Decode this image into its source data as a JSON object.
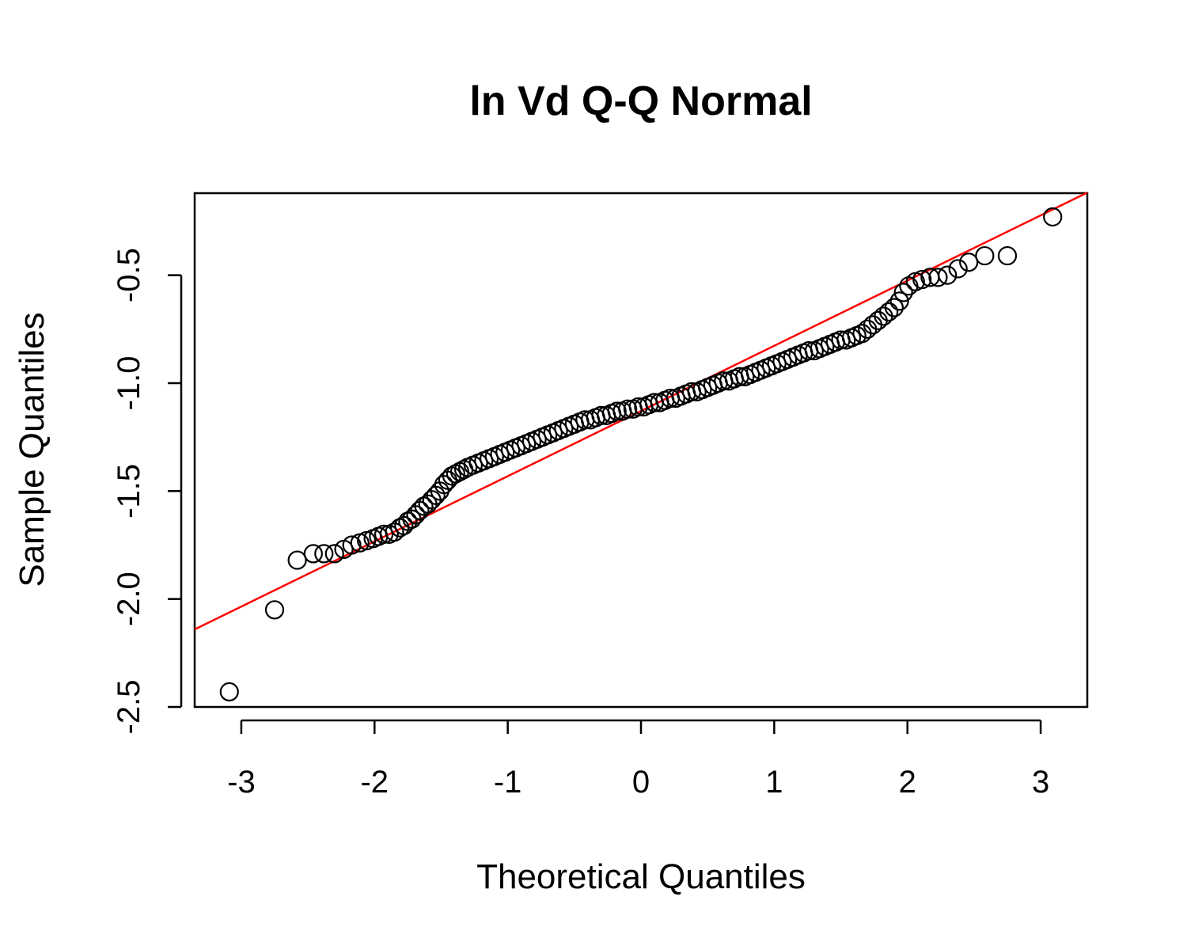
{
  "chart_data": {
    "type": "scatter",
    "title": "ln Vd Q-Q Normal",
    "xlabel": "Theoretical Quantiles",
    "ylabel": "Sample Quantiles",
    "xlim": [
      -3.35,
      3.35
    ],
    "ylim": [
      -2.5,
      -0.12
    ],
    "xticks": [
      -3,
      -2,
      -1,
      0,
      1,
      2,
      3
    ],
    "xtick_labels": [
      "-3",
      "-2",
      "-1",
      "0",
      "1",
      "2",
      "3"
    ],
    "yticks": [
      -2.5,
      -2.0,
      -1.5,
      -1.0,
      -0.5
    ],
    "ytick_labels": [
      "-2.5",
      "-2.0",
      "-1.5",
      "-1.0",
      "-0.5"
    ],
    "grid": false,
    "marker": "open-circle",
    "reference_line": {
      "slope": 0.302,
      "intercept": -1.129,
      "color": "#ff0000"
    },
    "series": [
      {
        "x": [
          -3.09,
          -2.75,
          -2.58,
          -2.46,
          -2.38,
          -2.3,
          -2.23,
          -2.17,
          -2.11,
          -2.06,
          -2.01,
          -1.97,
          -1.93,
          -1.89,
          -1.85,
          -1.81,
          -1.78,
          -1.75,
          -1.72,
          -1.69,
          -1.66,
          -1.63,
          -1.6,
          -1.57,
          -1.54,
          -1.51,
          -1.48,
          -1.45,
          -1.42,
          -1.39,
          -1.36,
          -1.33,
          -1.3,
          -1.26,
          -1.22,
          -1.18,
          -1.14,
          -1.1,
          -1.06,
          -1.02,
          -0.98,
          -0.94,
          -0.9,
          -0.86,
          -0.82,
          -0.78,
          -0.74,
          -0.7,
          -0.66,
          -0.62,
          -0.58,
          -0.54,
          -0.5,
          -0.46,
          -0.42,
          -0.38,
          -0.34,
          -0.3,
          -0.26,
          -0.22,
          -0.18,
          -0.14,
          -0.1,
          -0.06,
          -0.02,
          0.02,
          0.06,
          0.1,
          0.14,
          0.18,
          0.22,
          0.26,
          0.3,
          0.34,
          0.38,
          0.42,
          0.46,
          0.5,
          0.54,
          0.58,
          0.62,
          0.66,
          0.7,
          0.74,
          0.78,
          0.82,
          0.86,
          0.9,
          0.94,
          0.98,
          1.02,
          1.06,
          1.1,
          1.14,
          1.18,
          1.22,
          1.26,
          1.3,
          1.34,
          1.38,
          1.42,
          1.46,
          1.5,
          1.54,
          1.58,
          1.62,
          1.66,
          1.7,
          1.74,
          1.78,
          1.82,
          1.86,
          1.9,
          1.94,
          1.97,
          2.01,
          2.06,
          2.11,
          2.17,
          2.23,
          2.3,
          2.38,
          2.46,
          2.58,
          2.75,
          3.09
        ],
        "y": [
          -2.43,
          -2.05,
          -1.82,
          -1.79,
          -1.79,
          -1.79,
          -1.77,
          -1.75,
          -1.74,
          -1.73,
          -1.72,
          -1.71,
          -1.7,
          -1.7,
          -1.69,
          -1.67,
          -1.66,
          -1.64,
          -1.63,
          -1.61,
          -1.59,
          -1.57,
          -1.56,
          -1.54,
          -1.52,
          -1.5,
          -1.47,
          -1.45,
          -1.43,
          -1.42,
          -1.41,
          -1.4,
          -1.39,
          -1.38,
          -1.37,
          -1.36,
          -1.35,
          -1.34,
          -1.33,
          -1.32,
          -1.31,
          -1.3,
          -1.29,
          -1.28,
          -1.27,
          -1.26,
          -1.25,
          -1.24,
          -1.23,
          -1.22,
          -1.21,
          -1.2,
          -1.19,
          -1.18,
          -1.17,
          -1.17,
          -1.16,
          -1.15,
          -1.15,
          -1.14,
          -1.13,
          -1.13,
          -1.12,
          -1.12,
          -1.11,
          -1.11,
          -1.1,
          -1.09,
          -1.09,
          -1.08,
          -1.07,
          -1.07,
          -1.06,
          -1.05,
          -1.04,
          -1.04,
          -1.03,
          -1.02,
          -1.01,
          -1.0,
          -0.99,
          -0.99,
          -0.98,
          -0.97,
          -0.97,
          -0.96,
          -0.95,
          -0.94,
          -0.93,
          -0.92,
          -0.91,
          -0.9,
          -0.89,
          -0.88,
          -0.87,
          -0.86,
          -0.85,
          -0.85,
          -0.84,
          -0.83,
          -0.82,
          -0.81,
          -0.8,
          -0.8,
          -0.79,
          -0.78,
          -0.77,
          -0.75,
          -0.73,
          -0.71,
          -0.69,
          -0.67,
          -0.65,
          -0.62,
          -0.58,
          -0.55,
          -0.53,
          -0.52,
          -0.51,
          -0.51,
          -0.5,
          -0.47,
          -0.44,
          -0.41,
          -0.41,
          -0.23
        ]
      }
    ]
  }
}
